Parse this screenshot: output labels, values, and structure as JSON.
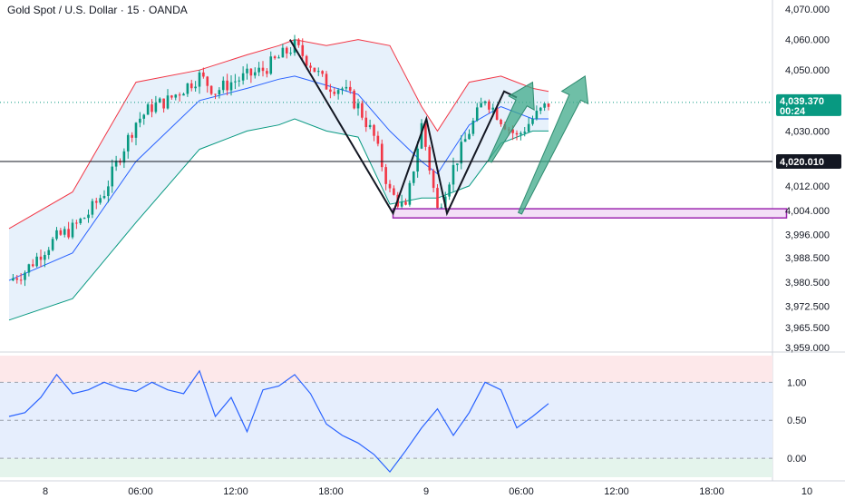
{
  "header": {
    "title": "Gold Spot / U.S. Dollar · 15 · OANDA"
  },
  "colors": {
    "bull": "#089981",
    "bear": "#f23645",
    "bb_upper": "#f23645",
    "bb_basis": "#2962ff",
    "bb_lower": "#089981",
    "bb_fill": "#e3effa",
    "osc": "#2962ff",
    "arrow": "#3fa98a",
    "box": "#9c27b0",
    "price_tag": "#089981",
    "level_tag": "#131722"
  },
  "chart_data": [
    {
      "type": "line",
      "subtype": "candlestick-with-bollinger-bands",
      "ylim": [
        3959,
        4070
      ],
      "xlim": [
        "8 00:00",
        "10 00:00"
      ],
      "y_ticks": [
        "4,070.000",
        "4,060.000",
        "4,050.000",
        "4,030.000",
        "4,012.000",
        "4,004.000",
        "3,996.000",
        "3,988.500",
        "3,980.500",
        "3,972.500",
        "3,965.500",
        "3,959.000"
      ],
      "x_ticks": [
        "8",
        "06:00",
        "12:00",
        "18:00",
        "9",
        "06:00",
        "12:00",
        "18:00",
        "10"
      ],
      "x_tick_hours": [
        0,
        6,
        12,
        18,
        24,
        30,
        36,
        42,
        48
      ],
      "last_price": {
        "value": "4,039.370",
        "countdown": "00:24"
      },
      "horizontal_level": {
        "value": "4,020.010"
      },
      "close_series_hours": [
        0,
        1,
        2,
        3,
        4,
        5,
        6,
        7,
        8,
        9,
        10,
        11,
        12,
        13,
        14,
        15,
        16,
        17,
        18,
        19,
        20,
        21,
        22,
        23,
        24,
        25,
        26,
        27,
        28,
        29,
        30,
        31,
        32,
        33,
        34
      ],
      "close_series": [
        3981,
        3984,
        3990,
        3995,
        3998,
        4003,
        4010,
        4022,
        4033,
        4038,
        4040,
        4044,
        4048,
        4043,
        4046,
        4048,
        4050,
        4054,
        4058,
        4052,
        4045,
        4044,
        4038,
        4028,
        4010,
        4004,
        4032,
        4004,
        4018,
        4030,
        4041,
        4034,
        4028,
        4034,
        4039
      ],
      "series": [
        {
          "name": "Upper",
          "color_key": "bb_upper",
          "x": [
            0,
            4,
            8,
            12,
            15,
            17,
            18,
            20,
            22,
            24,
            26,
            27,
            29,
            31,
            33,
            34
          ],
          "values": [
            3998,
            4010,
            4046,
            4050,
            4055,
            4058,
            4060,
            4058,
            4060,
            4058,
            4038,
            4030,
            4046,
            4048,
            4044,
            4043
          ]
        },
        {
          "name": "Basis",
          "color_key": "bb_basis",
          "x": [
            0,
            4,
            8,
            12,
            15,
            17,
            18,
            20,
            22,
            24,
            26,
            27,
            29,
            31,
            33,
            34
          ],
          "values": [
            3981,
            3990,
            4020,
            4040,
            4044,
            4047,
            4048,
            4045,
            4042,
            4030,
            4020,
            4016,
            4032,
            4038,
            4034,
            4034
          ]
        },
        {
          "name": "Lower",
          "color_key": "bb_lower",
          "x": [
            0,
            4,
            8,
            12,
            15,
            17,
            18,
            20,
            22,
            24,
            26,
            27,
            29,
            31,
            33,
            34
          ],
          "values": [
            3968,
            3975,
            4000,
            4024,
            4030,
            4032,
            4034,
            4030,
            4028,
            4006,
            4008,
            4008,
            4012,
            4026,
            4030,
            4030
          ]
        }
      ],
      "annotations": {
        "zigzag": {
          "x": [
            17.7,
            24.2,
            26.3,
            27.6,
            31.2,
            32.0
          ],
          "y": [
            4060,
            4003,
            4034,
            4003,
            4043,
            4041
          ]
        },
        "support_box": {
          "x": [
            24.2,
            49.0
          ],
          "y": [
            4001.5,
            4004.5
          ]
        },
        "arrows": [
          {
            "base_x": 30.3,
            "base_y": 4020,
            "tip_x": 33.0,
            "tip_y": 4046
          },
          {
            "base_x": 32.2,
            "base_y": 4003,
            "tip_x": 36.3,
            "tip_y": 4048
          }
        ]
      }
    },
    {
      "type": "line",
      "subtype": "oscillator",
      "ylim": [
        -0.25,
        1.35
      ],
      "y_ticks": [
        "1.00",
        "0.50",
        "0.00"
      ],
      "bands": {
        "upper": 1.0,
        "mid": 0.5,
        "lower": 0.0
      },
      "x": [
        0,
        1,
        2,
        3,
        4,
        5,
        6,
        7,
        8,
        9,
        10,
        11,
        12,
        13,
        14,
        15,
        16,
        17,
        18,
        19,
        20,
        21,
        22,
        23,
        24,
        25,
        26,
        27,
        28,
        29,
        30,
        31,
        32,
        33,
        34
      ],
      "values": [
        0.55,
        0.6,
        0.8,
        1.1,
        0.85,
        0.9,
        1.0,
        0.92,
        0.88,
        1.0,
        0.9,
        0.85,
        1.15,
        0.55,
        0.8,
        0.35,
        0.9,
        0.95,
        1.1,
        0.85,
        0.45,
        0.3,
        0.2,
        0.05,
        -0.18,
        0.1,
        0.4,
        0.65,
        0.3,
        0.6,
        1.0,
        0.9,
        0.4,
        0.55,
        0.72
      ]
    }
  ]
}
